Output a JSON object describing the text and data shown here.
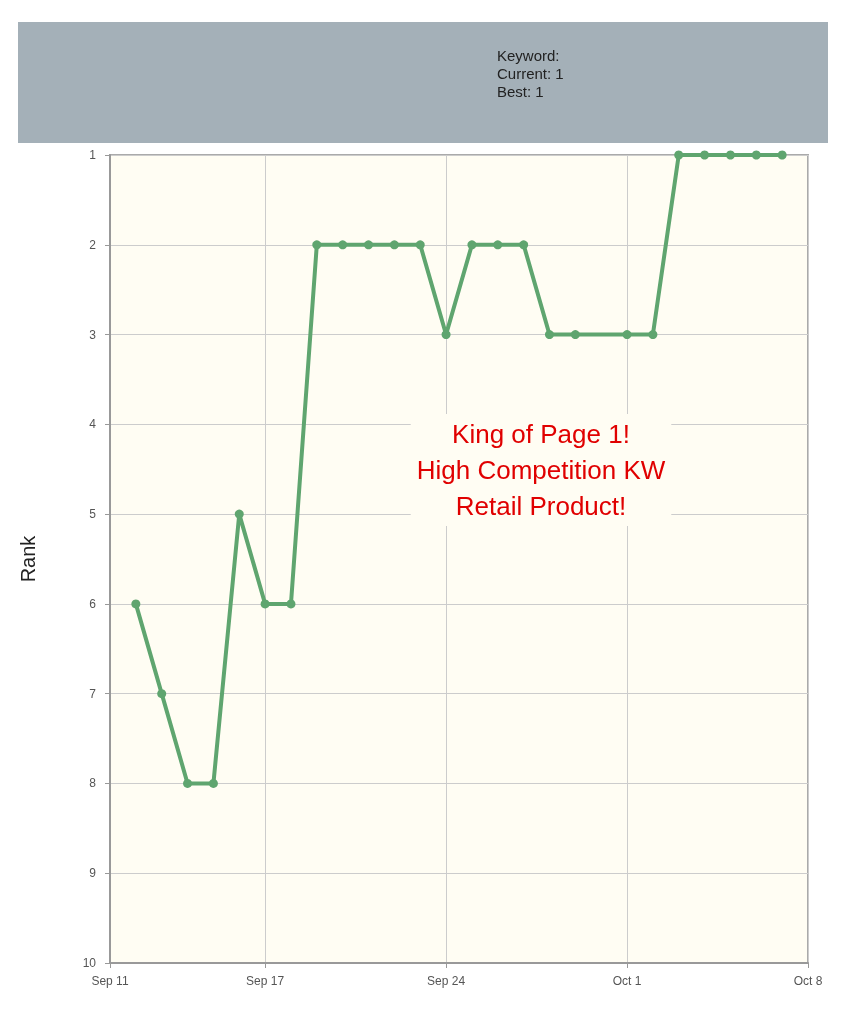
{
  "chart_data": {
    "type": "line",
    "ylabel": "Rank",
    "annotations": [
      "King of Page 1!\nHigh Competition KW\nRetail Product!",
      "Keyword:",
      "Current: 1",
      "Best: 1"
    ],
    "series": [
      {
        "color": "#5fa56f",
        "x": [
          "--09-12",
          "--09-13",
          "--09-14",
          "--09-15",
          "--09-16",
          "--09-17",
          "--09-18",
          "--09-19",
          "--09-20",
          "--09-21",
          "--09-22",
          "--09-23",
          "--09-24",
          "--09-25",
          "--09-26",
          "--09-27",
          "--09-28",
          "--09-29",
          "--10-01",
          "--10-02",
          "--10-03",
          "--10-04",
          "--10-05",
          "--10-06",
          "--10-07"
        ],
        "values": [
          6,
          7,
          8,
          8,
          5,
          6,
          6,
          2,
          2,
          2,
          2,
          2,
          3,
          2,
          2,
          2,
          3,
          3,
          3,
          3,
          1,
          1,
          1,
          1,
          1
        ]
      }
    ],
    "xlim": [
      "--09-11",
      "--10-08"
    ],
    "xticks": [
      {
        "value": "--09-11",
        "label": "Sep 11"
      },
      {
        "value": "--09-17",
        "label": "Sep 17"
      },
      {
        "value": "--09-24",
        "label": "Sep 24"
      },
      {
        "value": "--10-01",
        "label": "Oct 1"
      },
      {
        "value": "--10-08",
        "label": "Oct 8"
      }
    ],
    "ylim": [
      10,
      1
    ],
    "yticks": [
      1,
      2,
      3,
      4,
      5,
      6,
      7,
      8,
      9,
      10
    ],
    "grid": true,
    "marker": "circle",
    "line_style": "solid"
  }
}
